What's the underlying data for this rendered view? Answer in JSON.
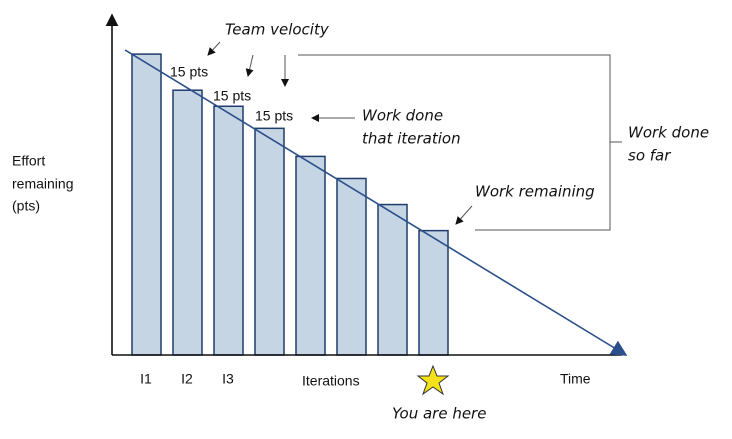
{
  "chart_data": {
    "type": "bar",
    "y_label": [
      "Effort",
      "remaining",
      "(pts)"
    ],
    "x_label": "Iterations",
    "x_end_label": "Time",
    "categories": [
      "I1",
      "I2",
      "I3",
      null,
      null,
      null,
      null,
      null
    ],
    "values": [
      150,
      132,
      124,
      113,
      99,
      88,
      75,
      62
    ],
    "ylim": [
      0,
      168
    ],
    "color": "#c5d5e4",
    "edge_color": "#1f3d6b",
    "annotations": {
      "team_velocity": "Team velocity",
      "velocity_labels": [
        "15 pts",
        "15 pts",
        "15 pts"
      ],
      "work_done_iteration": [
        "Work done",
        "that iteration"
      ],
      "work_done_so_far": [
        "Work done",
        "so far"
      ],
      "work_remaining": "Work remaining",
      "you_are_here": "You are here"
    }
  }
}
